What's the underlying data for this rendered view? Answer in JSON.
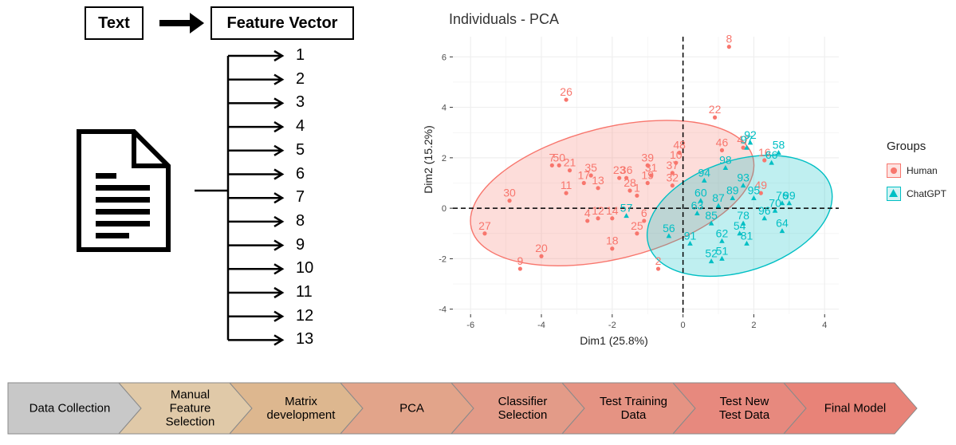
{
  "flow_top": {
    "text_label": "Text",
    "feature_vector_label": "Feature Vector",
    "features": [
      "1",
      "2",
      "3",
      "4",
      "5",
      "6",
      "7",
      "8",
      "9",
      "10",
      "11",
      "12",
      "13"
    ]
  },
  "pca": {
    "title": "Individuals - PCA",
    "legend_title": "Groups",
    "legend_human": "Human",
    "legend_chatgpt": "ChatGPT",
    "color_human": "#F8766D",
    "color_chatgpt": "#00BFC4"
  },
  "chart_data": {
    "type": "scatter",
    "title": "Individuals - PCA",
    "xlabel": "Dim1 (25.8%)",
    "ylabel": "Dim2 (15.2%)",
    "xlim": [
      -6.5,
      4.4
    ],
    "ylim": [
      -4.2,
      6.8
    ],
    "x_ticks": [
      -6,
      -4,
      -2,
      0,
      2,
      4
    ],
    "y_ticks": [
      -4,
      -2,
      0,
      2,
      4,
      6
    ],
    "grid": true,
    "legend_position": "right",
    "series": [
      {
        "name": "Human",
        "marker": "circle",
        "points": [
          {
            "label": "8",
            "x": 1.3,
            "y": 6.4
          },
          {
            "label": "26",
            "x": -3.3,
            "y": 4.3
          },
          {
            "label": "22",
            "x": 0.9,
            "y": 3.6
          },
          {
            "label": "7",
            "x": -3.7,
            "y": 1.7
          },
          {
            "label": "50",
            "x": -3.5,
            "y": 1.7
          },
          {
            "label": "21",
            "x": -3.2,
            "y": 1.5
          },
          {
            "label": "30",
            "x": -4.9,
            "y": 0.3
          },
          {
            "label": "27",
            "x": -5.6,
            "y": -1.0
          },
          {
            "label": "9",
            "x": -4.6,
            "y": -2.4
          },
          {
            "label": "20",
            "x": -4.0,
            "y": -1.9
          },
          {
            "label": "11",
            "x": -3.3,
            "y": 0.6
          },
          {
            "label": "17",
            "x": -2.8,
            "y": 1.0
          },
          {
            "label": "35",
            "x": -2.6,
            "y": 1.3
          },
          {
            "label": "13",
            "x": -2.4,
            "y": 0.8
          },
          {
            "label": "4",
            "x": -2.7,
            "y": -0.5
          },
          {
            "label": "12",
            "x": -2.4,
            "y": -0.4
          },
          {
            "label": "14",
            "x": -2.0,
            "y": -0.4
          },
          {
            "label": "18",
            "x": -2.0,
            "y": -1.6
          },
          {
            "label": "23",
            "x": -1.8,
            "y": 1.2
          },
          {
            "label": "36",
            "x": -1.6,
            "y": 1.2
          },
          {
            "label": "28",
            "x": -1.5,
            "y": 0.7
          },
          {
            "label": "39",
            "x": -1.0,
            "y": 1.7
          },
          {
            "label": "31",
            "x": -0.9,
            "y": 1.3
          },
          {
            "label": "19",
            "x": -1.0,
            "y": 1.0
          },
          {
            "label": "10",
            "x": -0.2,
            "y": 1.8
          },
          {
            "label": "37",
            "x": -0.3,
            "y": 1.4
          },
          {
            "label": "32",
            "x": -0.3,
            "y": 0.9
          },
          {
            "label": "48",
            "x": -0.1,
            "y": 2.2
          },
          {
            "label": "6",
            "x": -1.1,
            "y": -0.5
          },
          {
            "label": "2",
            "x": -0.7,
            "y": -2.4
          },
          {
            "label": "25",
            "x": -1.3,
            "y": -1.0
          },
          {
            "label": "46",
            "x": 1.1,
            "y": 2.3
          },
          {
            "label": "47",
            "x": 1.7,
            "y": 2.4
          },
          {
            "label": "16",
            "x": 2.3,
            "y": 1.9
          },
          {
            "label": "49",
            "x": 2.2,
            "y": 0.6
          },
          {
            "label": "1",
            "x": -1.3,
            "y": 0.5
          }
        ]
      },
      {
        "name": "ChatGPT",
        "marker": "triangle",
        "points": [
          {
            "label": "92",
            "x": 1.9,
            "y": 2.6
          },
          {
            "label": "58",
            "x": 2.7,
            "y": 2.2
          },
          {
            "label": "98",
            "x": 1.2,
            "y": 1.6
          },
          {
            "label": "94",
            "x": 0.6,
            "y": 1.1
          },
          {
            "label": "66",
            "x": 2.5,
            "y": 1.8
          },
          {
            "label": "93",
            "x": 1.7,
            "y": 0.9
          },
          {
            "label": "76",
            "x": 2.8,
            "y": 0.2
          },
          {
            "label": "99",
            "x": 3.0,
            "y": 0.2
          },
          {
            "label": "95",
            "x": 2.0,
            "y": 0.4
          },
          {
            "label": "78",
            "x": 1.7,
            "y": -0.6
          },
          {
            "label": "64",
            "x": 2.8,
            "y": -0.9
          },
          {
            "label": "81",
            "x": 1.8,
            "y": -1.4
          },
          {
            "label": "91",
            "x": 0.2,
            "y": -1.4
          },
          {
            "label": "62",
            "x": 1.1,
            "y": -1.3
          },
          {
            "label": "51",
            "x": 1.1,
            "y": -2.0
          },
          {
            "label": "52",
            "x": 0.8,
            "y": -2.1
          },
          {
            "label": "56",
            "x": -0.4,
            "y": -1.1
          },
          {
            "label": "57",
            "x": -1.6,
            "y": -0.3
          },
          {
            "label": "54",
            "x": 1.6,
            "y": -1.0
          },
          {
            "label": "97",
            "x": 1.8,
            "y": 2.4
          },
          {
            "label": "87",
            "x": 1.0,
            "y": 0.1
          },
          {
            "label": "60",
            "x": 0.5,
            "y": 0.3
          },
          {
            "label": "63",
            "x": 0.4,
            "y": -0.2
          },
          {
            "label": "70",
            "x": 2.6,
            "y": -0.1
          },
          {
            "label": "85",
            "x": 0.8,
            "y": -0.6
          },
          {
            "label": "89",
            "x": 1.4,
            "y": 0.4
          },
          {
            "label": "96",
            "x": 2.3,
            "y": -0.4
          }
        ]
      }
    ]
  },
  "pipeline": {
    "steps": [
      {
        "line1": "Data Collection",
        "line2": "",
        "line3": ""
      },
      {
        "line1": "Manual",
        "line2": "Feature",
        "line3": "Selection"
      },
      {
        "line1": "Matrix",
        "line2": "development",
        "line3": ""
      },
      {
        "line1": "PCA",
        "line2": "",
        "line3": ""
      },
      {
        "line1": "Classifier",
        "line2": "Selection",
        "line3": ""
      },
      {
        "line1": "Test Training",
        "line2": "Data",
        "line3": ""
      },
      {
        "line1": "Test New",
        "line2": "Test Data",
        "line3": ""
      },
      {
        "line1": "Final Model",
        "line2": "",
        "line3": ""
      }
    ]
  }
}
